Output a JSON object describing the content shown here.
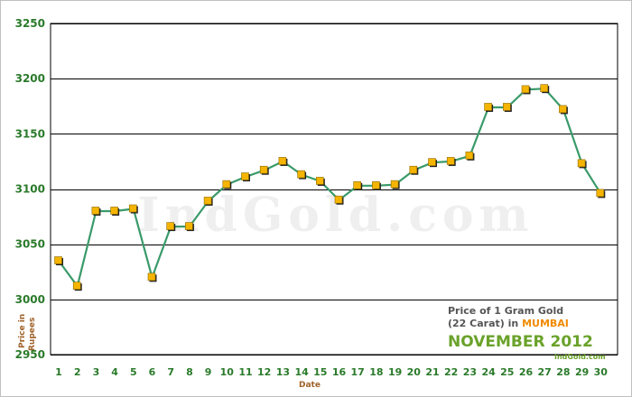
{
  "chart_data": {
    "type": "line",
    "title_line1": "Price of 1 Gram Gold",
    "title_line2_prefix": "(22 Carat) in ",
    "title_city": "MUMBAI",
    "title_month": "NOVEMBER 2012",
    "xlabel": "Date",
    "ylabel_line1": "Price in",
    "ylabel_line2": "Rupees",
    "watermark": "IndGold.com",
    "credit": "IndGold.com",
    "ylim": [
      2950,
      3250
    ],
    "yticks": [
      2950,
      3000,
      3050,
      3100,
      3150,
      3200,
      3250
    ],
    "x": [
      1,
      2,
      3,
      4,
      5,
      6,
      7,
      8,
      9,
      10,
      11,
      12,
      13,
      14,
      15,
      16,
      17,
      18,
      19,
      20,
      21,
      22,
      23,
      24,
      25,
      26,
      27,
      28,
      29,
      30
    ],
    "series": [
      {
        "values": [
          3035,
          3012,
          3080,
          3080,
          3082,
          3020,
          3066,
          3066,
          3089,
          3104,
          3111,
          3117,
          3125,
          3113,
          3107,
          3090,
          3103,
          3103,
          3104,
          3117,
          3124,
          3125,
          3130,
          3174,
          3174,
          3190,
          3191,
          3172,
          3123,
          3096
        ]
      }
    ],
    "grid": true,
    "colors": {
      "line": "#3a9a6a",
      "marker": "#f5b400",
      "marker_shadow": "#222222",
      "gridline": "#000000"
    }
  }
}
